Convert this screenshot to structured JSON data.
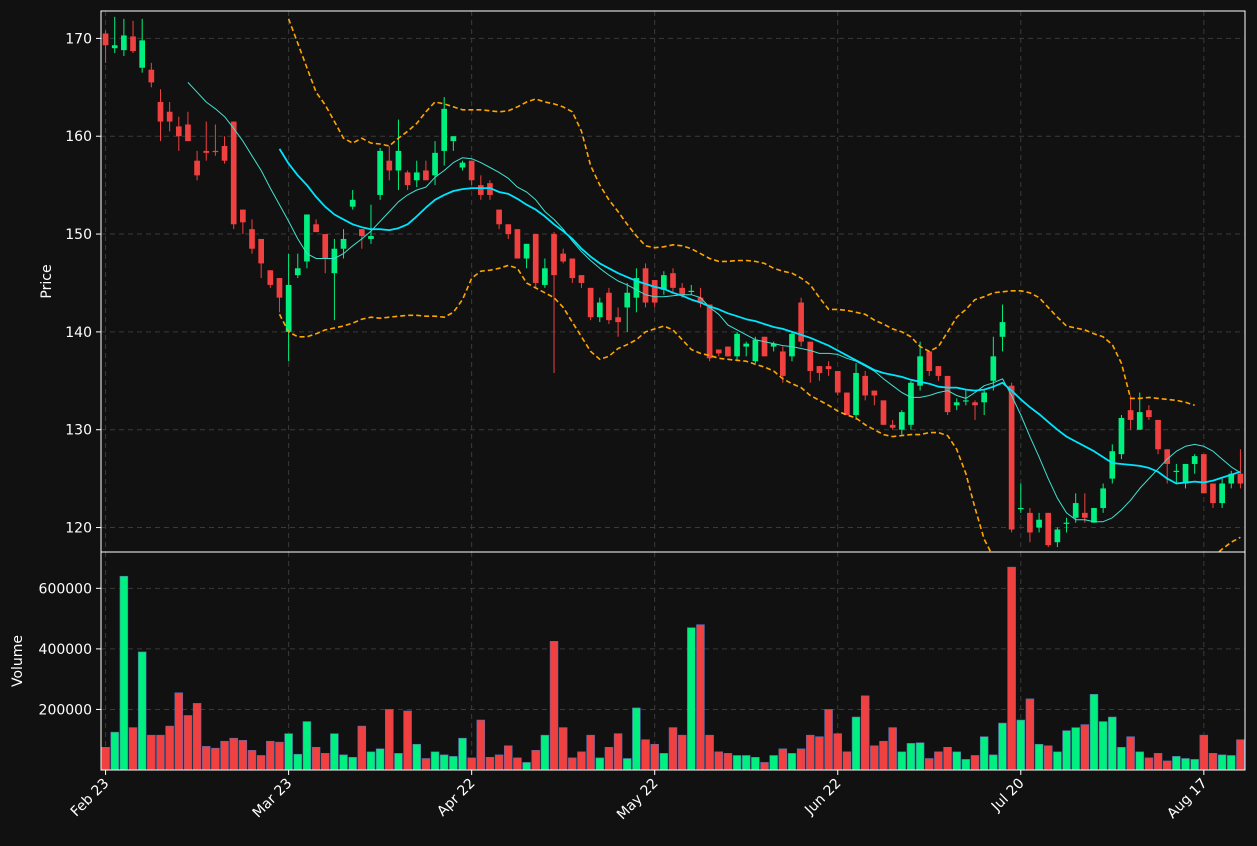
{
  "colors": {
    "background": "#111111",
    "up": "#00f080",
    "down": "#f04040",
    "grid": "#3a3a3a",
    "axis": "#ffffff",
    "sma_short": "#40e0d0",
    "sma_long": "#00e5ff",
    "bollinger": "#ffa500"
  },
  "chart_data": {
    "type": "candlestick",
    "price_panel": {
      "ylabel": "Price",
      "ylim": [
        117.5,
        172.8
      ],
      "yticks": [
        120,
        130,
        140,
        150,
        160,
        170
      ],
      "grid": true
    },
    "volume_panel": {
      "ylabel": "Volume",
      "ylim": [
        0,
        720000
      ],
      "yticks": [
        200000,
        400000,
        600000
      ],
      "ytick_labels": [
        "200000",
        "400000",
        "600000"
      ],
      "grid": true
    },
    "x_tick_labels": [
      {
        "label": "Feb 23",
        "index": 0
      },
      {
        "label": "Mar 23",
        "index": 20
      },
      {
        "label": "Apr 22",
        "index": 40
      },
      {
        "label": "May 22",
        "index": 60
      },
      {
        "label": "Jun 22",
        "index": 80
      },
      {
        "label": "Jul 20",
        "index": 100
      },
      {
        "label": "Aug 17",
        "index": 120
      }
    ],
    "ohlc": [
      [
        170.5,
        170.8,
        167.5,
        169.3
      ],
      [
        169.0,
        172.2,
        168.5,
        169.3
      ],
      [
        168.8,
        172.0,
        168.2,
        170.3
      ],
      [
        170.2,
        171.8,
        168.5,
        168.7
      ],
      [
        167.0,
        172.0,
        166.5,
        169.8
      ],
      [
        166.8,
        167.5,
        165.0,
        165.5
      ],
      [
        163.5,
        164.8,
        159.5,
        161.5
      ],
      [
        162.5,
        163.5,
        160.5,
        161.5
      ],
      [
        161.0,
        162.0,
        158.5,
        160.0
      ],
      [
        161.2,
        162.5,
        159.5,
        159.5
      ],
      [
        157.5,
        158.5,
        155.5,
        156.0
      ],
      [
        158.5,
        161.5,
        157.5,
        158.3
      ],
      [
        158.5,
        161.2,
        158.0,
        158.4
      ],
      [
        159.0,
        160.0,
        157.2,
        157.5
      ],
      [
        161.5,
        161.5,
        150.5,
        151.0
      ],
      [
        152.5,
        152.5,
        150.0,
        151.2
      ],
      [
        150.5,
        151.5,
        148.0,
        148.5
      ],
      [
        149.5,
        149.5,
        145.5,
        147.0
      ],
      [
        146.3,
        146.3,
        144.5,
        144.8
      ],
      [
        145.5,
        145.5,
        142.0,
        143.5
      ],
      [
        140.0,
        148.0,
        137.0,
        144.8
      ],
      [
        145.8,
        148.0,
        145.5,
        146.5
      ],
      [
        147.2,
        151.5,
        146.5,
        152.0
      ],
      [
        151.0,
        151.5,
        150.2,
        150.2
      ],
      [
        150.0,
        150.0,
        146.0,
        147.5
      ],
      [
        146.0,
        149.5,
        141.2,
        148.5
      ],
      [
        148.5,
        150.5,
        147.5,
        149.5
      ],
      [
        152.8,
        154.5,
        152.5,
        153.5
      ],
      [
        150.5,
        150.5,
        148.5,
        149.8
      ],
      [
        149.5,
        153.0,
        149.0,
        149.8
      ],
      [
        154.0,
        158.8,
        153.5,
        158.5
      ],
      [
        157.5,
        159.0,
        155.5,
        156.5
      ],
      [
        156.5,
        161.7,
        154.5,
        158.5
      ],
      [
        156.3,
        156.5,
        154.5,
        155.0
      ],
      [
        155.5,
        157.5,
        154.8,
        156.3
      ],
      [
        156.5,
        157.5,
        155.5,
        155.5
      ],
      [
        156.0,
        159.5,
        155.0,
        158.3
      ],
      [
        158.5,
        164.0,
        157.0,
        162.8
      ],
      [
        159.5,
        159.8,
        158.5,
        160.0
      ],
      [
        156.8,
        157.5,
        156.5,
        157.3
      ],
      [
        157.5,
        157.5,
        155.0,
        155.5
      ],
      [
        155.0,
        156.0,
        153.5,
        154.0
      ],
      [
        155.2,
        155.5,
        153.5,
        154.0
      ],
      [
        152.5,
        152.5,
        150.5,
        151.0
      ],
      [
        151.0,
        151.0,
        149.5,
        150.0
      ],
      [
        150.5,
        150.5,
        147.5,
        147.5
      ],
      [
        147.5,
        149.0,
        146.5,
        149.0
      ],
      [
        150.0,
        150.0,
        144.5,
        145.0
      ],
      [
        144.8,
        147.5,
        144.5,
        146.5
      ],
      [
        150.0,
        150.2,
        135.8,
        145.8
      ],
      [
        148.0,
        148.5,
        147.0,
        147.2
      ],
      [
        147.5,
        147.5,
        145.0,
        145.5
      ],
      [
        145.8,
        145.8,
        144.5,
        145.0
      ],
      [
        144.5,
        144.5,
        141.2,
        141.5
      ],
      [
        141.5,
        143.5,
        141.0,
        143.0
      ],
      [
        144.0,
        144.5,
        140.8,
        141.2
      ],
      [
        141.5,
        142.5,
        139.5,
        141.0
      ],
      [
        142.5,
        145.0,
        140.0,
        144.0
      ],
      [
        143.5,
        146.5,
        142.0,
        145.5
      ],
      [
        146.5,
        147.0,
        142.5,
        143.0
      ],
      [
        145.3,
        145.3,
        142.5,
        143.0
      ],
      [
        144.3,
        146.2,
        143.8,
        145.8
      ],
      [
        146.0,
        146.5,
        144.0,
        144.5
      ],
      [
        144.5,
        145.0,
        143.5,
        143.8
      ],
      [
        144.2,
        144.8,
        143.8,
        144.2
      ],
      [
        143.5,
        144.5,
        142.5,
        143.0
      ],
      [
        142.8,
        142.8,
        137.0,
        137.3
      ],
      [
        138.2,
        138.2,
        137.5,
        137.8
      ],
      [
        138.5,
        138.5,
        137.5,
        137.5
      ],
      [
        137.5,
        140.0,
        137.0,
        139.8
      ],
      [
        138.5,
        139.0,
        137.5,
        138.8
      ],
      [
        137.0,
        139.5,
        136.8,
        139.2
      ],
      [
        139.5,
        139.5,
        137.5,
        137.5
      ],
      [
        138.5,
        139.0,
        138.0,
        138.8
      ],
      [
        138.0,
        138.5,
        134.8,
        135.5
      ],
      [
        137.5,
        140.0,
        137.0,
        139.8
      ],
      [
        143.0,
        143.5,
        138.5,
        139.0
      ],
      [
        139.0,
        139.0,
        134.8,
        136.0
      ],
      [
        136.5,
        136.5,
        135.0,
        135.8
      ],
      [
        136.5,
        137.0,
        135.5,
        136.2
      ],
      [
        136.0,
        136.0,
        133.5,
        133.8
      ],
      [
        133.8,
        133.8,
        131.5,
        131.5
      ],
      [
        131.5,
        136.8,
        131.0,
        135.8
      ],
      [
        135.5,
        136.0,
        133.0,
        133.5
      ],
      [
        134.0,
        134.0,
        132.5,
        133.5
      ],
      [
        133.0,
        133.0,
        130.5,
        130.5
      ],
      [
        130.5,
        131.0,
        130.0,
        130.2
      ],
      [
        130.0,
        132.0,
        129.5,
        131.8
      ],
      [
        130.5,
        135.0,
        130.0,
        134.8
      ],
      [
        134.5,
        139.0,
        134.0,
        137.5
      ],
      [
        138.0,
        138.0,
        135.5,
        136.0
      ],
      [
        136.5,
        136.5,
        135.0,
        135.5
      ],
      [
        135.5,
        135.5,
        131.5,
        131.8
      ],
      [
        132.5,
        133.2,
        132.0,
        132.8
      ],
      [
        133.0,
        134.0,
        132.5,
        133.0
      ],
      [
        132.8,
        133.0,
        131.0,
        132.5
      ],
      [
        132.8,
        134.0,
        131.5,
        133.8
      ],
      [
        135.0,
        139.5,
        134.0,
        137.5
      ],
      [
        139.5,
        142.8,
        138.0,
        141.0
      ],
      [
        134.5,
        134.8,
        119.5,
        119.8
      ],
      [
        122.0,
        124.5,
        121.5,
        122.0
      ],
      [
        121.5,
        122.0,
        118.5,
        119.5
      ],
      [
        120.0,
        121.5,
        119.5,
        120.8
      ],
      [
        121.5,
        121.5,
        118.0,
        118.2
      ],
      [
        118.5,
        120.0,
        118.0,
        119.8
      ],
      [
        120.5,
        121.0,
        119.5,
        120.5
      ],
      [
        121.0,
        123.5,
        120.5,
        122.5
      ],
      [
        121.5,
        123.5,
        120.5,
        121.0
      ],
      [
        120.5,
        122.0,
        120.5,
        122.0
      ],
      [
        122.0,
        124.5,
        121.5,
        124.0
      ],
      [
        125.0,
        128.5,
        124.5,
        127.8
      ],
      [
        127.5,
        131.5,
        127.0,
        131.2
      ],
      [
        132.0,
        133.5,
        130.0,
        131.0
      ],
      [
        130.0,
        133.8,
        130.0,
        131.8
      ],
      [
        132.0,
        132.5,
        131.0,
        131.3
      ],
      [
        131.0,
        131.0,
        127.5,
        128.0
      ],
      [
        128.0,
        128.0,
        124.5,
        126.5
      ],
      [
        125.8,
        126.5,
        124.5,
        125.8
      ],
      [
        124.5,
        126.5,
        124.0,
        126.5
      ],
      [
        126.5,
        127.5,
        125.5,
        127.3
      ],
      [
        127.5,
        127.5,
        123.5,
        123.5
      ],
      [
        124.5,
        124.5,
        122.0,
        122.5
      ],
      [
        122.5,
        125.0,
        122.0,
        124.5
      ],
      [
        124.5,
        125.8,
        124.0,
        125.5
      ],
      [
        125.5,
        128.0,
        124.0,
        124.5
      ]
    ],
    "volume": [
      75000,
      125000,
      640000,
      140000,
      390000,
      115000,
      115000,
      145000,
      255000,
      180000,
      220000,
      78000,
      72000,
      95000,
      105000,
      98000,
      65000,
      48000,
      95000,
      92000,
      120000,
      52000,
      160000,
      75000,
      55000,
      120000,
      50000,
      42000,
      145000,
      60000,
      70000,
      200000,
      55000,
      195000,
      85000,
      38000,
      60000,
      50000,
      45000,
      105000,
      40000,
      165000,
      42000,
      50000,
      80000,
      40000,
      25000,
      65000,
      115000,
      425000,
      140000,
      40000,
      60000,
      115000,
      40000,
      75000,
      120000,
      38000,
      205000,
      100000,
      85000,
      55000,
      140000,
      115000,
      470000,
      480000,
      115000,
      60000,
      55000,
      48000,
      48000,
      42000,
      25000,
      48000,
      70000,
      55000,
      70000,
      115000,
      110000,
      200000,
      120000,
      60000,
      175000,
      245000,
      80000,
      95000,
      140000,
      60000,
      88000,
      90000,
      38000,
      60000,
      75000,
      60000,
      35000,
      48000,
      110000,
      50000,
      155000,
      670000,
      165000,
      235000,
      85000,
      80000,
      60000,
      130000,
      140000,
      150000,
      250000,
      160000,
      175000,
      75000,
      110000,
      60000,
      40000,
      55000,
      30000,
      45000,
      38000,
      35000,
      115000,
      55000,
      50000,
      48000,
      100000
    ],
    "sma_short": [
      null,
      null,
      null,
      null,
      null,
      null,
      null,
      null,
      null,
      165.5,
      164.5,
      163.5,
      162.8,
      162.0,
      160.8,
      159.5,
      158.0,
      156.5,
      154.7,
      153.0,
      151.3,
      149.5,
      148.0,
      147.5,
      147.5,
      147.5,
      148.0,
      148.8,
      149.5,
      150.3,
      151.3,
      152.3,
      153.3,
      154.0,
      154.5,
      154.8,
      155.8,
      156.5,
      157.3,
      157.8,
      157.7,
      157.3,
      156.8,
      156.3,
      155.7,
      154.8,
      154.3,
      153.5,
      152.3,
      151.5,
      150.5,
      149.3,
      148.2,
      147.3,
      146.5,
      145.8,
      145.2,
      144.8,
      144.3,
      143.8,
      143.6,
      143.6,
      143.7,
      143.8,
      143.8,
      143.5,
      142.5,
      141.8,
      140.7,
      140.2,
      139.7,
      139.2,
      139.0,
      138.8,
      138.6,
      138.5,
      138.3,
      138.1,
      137.8,
      137.8,
      137.7,
      137.3,
      137.0,
      136.5,
      136.0,
      135.2,
      134.5,
      133.8,
      133.3,
      133.3,
      133.5,
      133.8,
      134.0,
      133.5,
      133.2,
      133.8,
      134.5,
      134.8,
      135.2,
      133.5,
      131.5,
      129.3,
      127.2,
      125.0,
      123.0,
      121.5,
      120.8,
      120.8,
      120.6,
      120.6,
      121.0,
      121.8,
      122.8,
      124.0,
      125.0,
      126.0,
      127.0,
      127.8,
      128.3,
      128.5,
      128.3,
      127.8,
      127.0,
      126.2,
      125.6
    ],
    "sma_long": [
      null,
      null,
      null,
      null,
      null,
      null,
      null,
      null,
      null,
      null,
      null,
      null,
      null,
      null,
      null,
      null,
      null,
      null,
      null,
      158.7,
      157.2,
      156.0,
      155.0,
      153.8,
      152.8,
      152.0,
      151.5,
      151.0,
      150.7,
      150.5,
      150.5,
      150.4,
      150.6,
      151.0,
      151.8,
      152.7,
      153.5,
      154.0,
      154.4,
      154.6,
      154.7,
      154.7,
      154.7,
      154.3,
      154.1,
      153.6,
      153.0,
      152.5,
      151.8,
      151.0,
      150.3,
      149.5,
      148.5,
      147.7,
      147.0,
      146.5,
      146.0,
      145.6,
      145.2,
      144.9,
      144.6,
      144.4,
      144.0,
      143.7,
      143.3,
      143.0,
      142.6,
      142.3,
      141.9,
      141.6,
      141.3,
      141.1,
      140.8,
      140.5,
      140.3,
      140.0,
      139.7,
      139.4,
      139.0,
      138.6,
      138.1,
      137.6,
      137.1,
      136.6,
      136.1,
      135.8,
      135.6,
      135.4,
      135.1,
      134.9,
      134.7,
      134.4,
      134.3,
      134.3,
      134.1,
      134.0,
      134.1,
      134.4,
      134.8,
      134.0,
      133.1,
      132.3,
      131.6,
      130.8,
      130.0,
      129.3,
      128.8,
      128.3,
      127.8,
      127.2,
      126.6,
      126.5,
      126.4,
      126.3,
      126.1,
      125.7,
      125.0,
      124.5,
      124.6,
      124.7,
      124.6,
      124.8,
      125.1,
      125.4,
      125.7
    ],
    "bb_upper": [
      null,
      null,
      null,
      null,
      null,
      null,
      null,
      null,
      null,
      null,
      null,
      null,
      null,
      null,
      null,
      null,
      null,
      null,
      null,
      null,
      172.0,
      169.5,
      167.0,
      164.5,
      163.2,
      161.5,
      159.8,
      159.3,
      159.8,
      159.3,
      159.2,
      159.0,
      159.8,
      160.5,
      161.3,
      162.5,
      163.5,
      163.3,
      163.0,
      162.7,
      162.7,
      162.7,
      162.6,
      162.5,
      162.6,
      163.0,
      163.5,
      163.8,
      163.5,
      163.3,
      163.0,
      162.5,
      160.5,
      157.0,
      155.0,
      153.5,
      152.3,
      151.0,
      149.8,
      148.8,
      148.6,
      148.7,
      148.9,
      148.8,
      148.5,
      148.0,
      147.5,
      147.2,
      147.2,
      147.3,
      147.3,
      147.2,
      147.0,
      146.5,
      146.2,
      146.0,
      145.5,
      144.8,
      143.5,
      142.3,
      142.3,
      142.2,
      142.0,
      141.8,
      141.2,
      140.8,
      140.3,
      140.0,
      139.5,
      138.5,
      138.0,
      138.5,
      140.0,
      141.5,
      142.3,
      143.3,
      143.6,
      144.0,
      144.1,
      144.2,
      144.2,
      144.0,
      143.5,
      142.5,
      141.5,
      140.6,
      140.4,
      140.2,
      139.8,
      139.5,
      138.7,
      136.8,
      133.2,
      133.2,
      133.3,
      133.2,
      133.1,
      133.0,
      132.8,
      132.5,
      null,
      null,
      null,
      null,
      null
    ],
    "bb_lower": [
      null,
      null,
      null,
      null,
      null,
      null,
      null,
      null,
      null,
      null,
      null,
      null,
      null,
      null,
      null,
      null,
      null,
      null,
      null,
      141.8,
      140.0,
      139.5,
      139.5,
      139.8,
      140.2,
      140.4,
      140.6,
      140.9,
      141.3,
      141.5,
      141.4,
      141.5,
      141.6,
      141.7,
      141.7,
      141.6,
      141.6,
      141.5,
      142.0,
      143.3,
      145.5,
      146.2,
      146.3,
      146.5,
      146.8,
      146.5,
      145.0,
      144.5,
      144.0,
      143.5,
      142.5,
      141.0,
      139.5,
      138.0,
      137.2,
      137.5,
      138.3,
      138.7,
      139.2,
      140.0,
      140.3,
      140.6,
      140.2,
      139.2,
      138.2,
      137.8,
      137.6,
      137.3,
      137.2,
      137.1,
      137.0,
      136.7,
      136.4,
      136.0,
      135.2,
      134.7,
      134.3,
      133.5,
      133.0,
      132.5,
      131.9,
      131.5,
      131.2,
      130.5,
      130.0,
      129.5,
      129.3,
      129.4,
      129.5,
      129.5,
      129.7,
      129.7,
      129.4,
      128.0,
      125.5,
      122.0,
      118.8,
      117.0,
      null,
      null,
      null,
      null,
      null,
      null,
      null,
      null,
      null,
      null,
      null,
      null,
      null,
      null,
      null,
      null,
      null,
      null,
      null,
      null,
      null,
      null,
      null,
      117.0,
      117.8,
      118.5,
      119.0
    ]
  }
}
